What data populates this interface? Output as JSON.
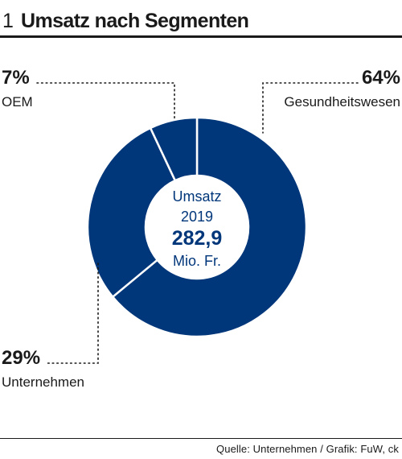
{
  "header": {
    "number": "1",
    "title": "Umsatz nach Segmenten"
  },
  "source": "Quelle: Unternehmen / Grafik: FuW, ck",
  "colors": {
    "segment": "#00367a",
    "text": "#1a1a1a",
    "background": "#ffffff"
  },
  "chart_data": {
    "type": "pie",
    "variant": "donut",
    "center": {
      "line1": "Umsatz",
      "line2": "2019",
      "value": "282,9",
      "unit": "Mio. Fr."
    },
    "slices": [
      {
        "label": "Gesundheitswesen",
        "value": 64,
        "display": "64%"
      },
      {
        "label": "Unternehmen",
        "value": 29,
        "display": "29%"
      },
      {
        "label": "OEM",
        "value": 7,
        "display": "7%"
      }
    ]
  }
}
